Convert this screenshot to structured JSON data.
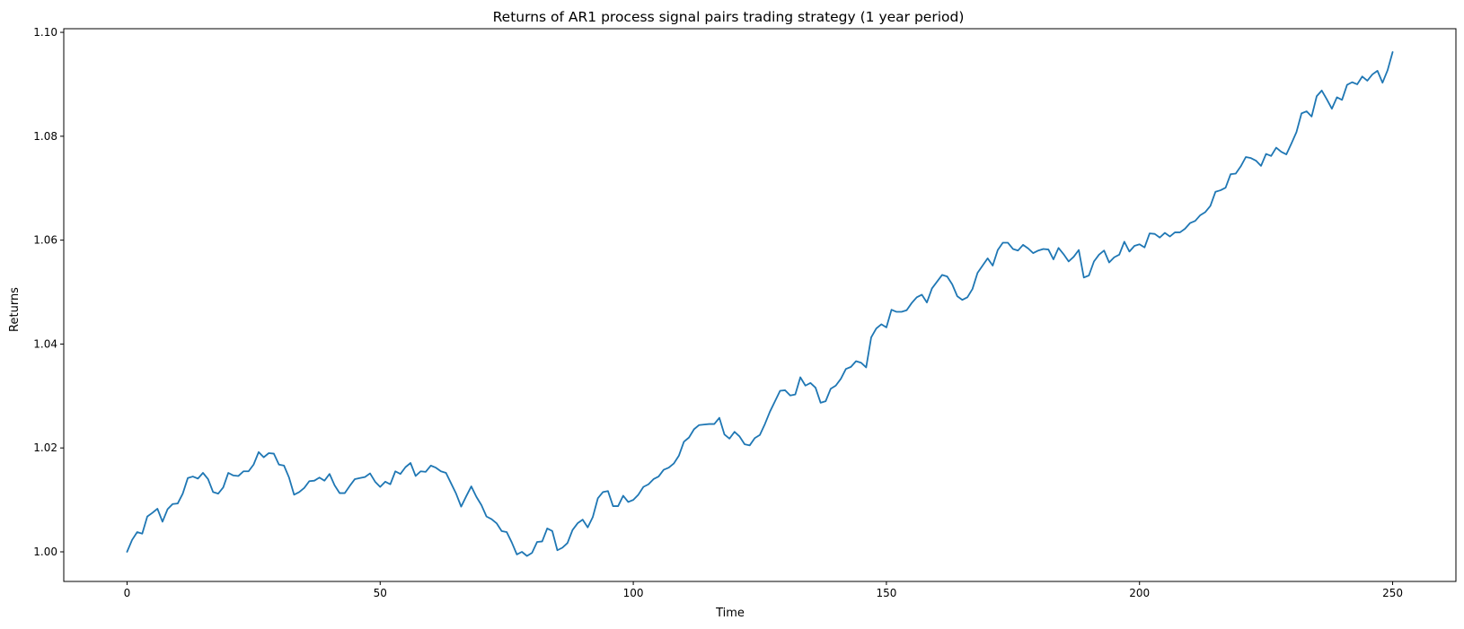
{
  "chart_data": {
    "type": "line",
    "title": "Returns of AR1 process signal pairs trading strategy (1 year period)",
    "xlabel": "Time",
    "ylabel": "Returns",
    "xlim": [
      -12.5,
      262.5
    ],
    "ylim": [
      0.9943,
      1.1007
    ],
    "xticks": [
      0,
      50,
      100,
      150,
      200,
      250
    ],
    "xtick_labels": [
      "0",
      "50",
      "100",
      "150",
      "200",
      "250"
    ],
    "yticks": [
      1.0,
      1.02,
      1.04,
      1.06,
      1.08,
      1.1
    ],
    "ytick_labels": [
      "1.00",
      "1.02",
      "1.04",
      "1.06",
      "1.08",
      "1.10"
    ],
    "grid": false,
    "legend": "none",
    "series": [
      {
        "color": "#1f77b4",
        "x": [
          0,
          1,
          2,
          3,
          4,
          5,
          6,
          7,
          8,
          9,
          10,
          11,
          12,
          13,
          14,
          15,
          16,
          17,
          18,
          19,
          20,
          21,
          22,
          23,
          24,
          25,
          26,
          27,
          28,
          29,
          30,
          31,
          32,
          33,
          34,
          35,
          36,
          37,
          38,
          39,
          40,
          41,
          42,
          43,
          44,
          45,
          46,
          47,
          48,
          49,
          50,
          51,
          52,
          53,
          54,
          55,
          56,
          57,
          58,
          59,
          60,
          61,
          62,
          63,
          64,
          65,
          66,
          67,
          68,
          69,
          70,
          71,
          72,
          73,
          74,
          75,
          76,
          77,
          78,
          79,
          80,
          81,
          82,
          83,
          84,
          85,
          86,
          87,
          88,
          89,
          90,
          91,
          92,
          93,
          94,
          95,
          96,
          97,
          98,
          99,
          100,
          101,
          102,
          103,
          104,
          105,
          106,
          107,
          108,
          109,
          110,
          111,
          112,
          113,
          114,
          115,
          116,
          117,
          118,
          119,
          120,
          121,
          122,
          123,
          124,
          125,
          126,
          127,
          128,
          129,
          130,
          131,
          132,
          133,
          134,
          135,
          136,
          137,
          138,
          139,
          140,
          141,
          142,
          143,
          144,
          145,
          146,
          147,
          148,
          149,
          150,
          151,
          152,
          153,
          154,
          155,
          156,
          157,
          158,
          159,
          160,
          161,
          162,
          163,
          164,
          165,
          166,
          167,
          168,
          169,
          170,
          171,
          172,
          173,
          174,
          175,
          176,
          177,
          178,
          179,
          180,
          181,
          182,
          183,
          184,
          185,
          186,
          187,
          188,
          189,
          190,
          191,
          192,
          193,
          194,
          195,
          196,
          197,
          198,
          199,
          200,
          201,
          202,
          203,
          204,
          205,
          206,
          207,
          208,
          209,
          210,
          211,
          212,
          213,
          214,
          215,
          216,
          217,
          218,
          219,
          220,
          221,
          222,
          223,
          224,
          225,
          226,
          227,
          228,
          229,
          230,
          231,
          232,
          233,
          234,
          235,
          236,
          237,
          238,
          239,
          240,
          241,
          242,
          243,
          244,
          245,
          246,
          247,
          248,
          249,
          250
        ],
        "y": [
          1.0,
          1.0023,
          1.0038,
          1.0035,
          1.0068,
          1.0075,
          1.0083,
          1.0058,
          1.0082,
          1.0092,
          1.0093,
          1.0112,
          1.0142,
          1.0145,
          1.0141,
          1.0152,
          1.014,
          1.0115,
          1.0112,
          1.0124,
          1.0152,
          1.0147,
          1.0146,
          1.0155,
          1.0155,
          1.0168,
          1.0192,
          1.0182,
          1.019,
          1.0189,
          1.0168,
          1.0166,
          1.0143,
          1.011,
          1.0115,
          1.0123,
          1.0136,
          1.0137,
          1.0143,
          1.0137,
          1.015,
          1.0128,
          1.0113,
          1.0113,
          1.0127,
          1.014,
          1.0142,
          1.0144,
          1.0151,
          1.0135,
          1.0125,
          1.0135,
          1.013,
          1.0155,
          1.015,
          1.0163,
          1.0171,
          1.0146,
          1.0155,
          1.0154,
          1.0166,
          1.0162,
          1.0155,
          1.0152,
          1.0132,
          1.0112,
          1.0087,
          1.0107,
          1.0126,
          1.0106,
          1.009,
          1.0068,
          1.0063,
          1.0055,
          1.004,
          1.0038,
          1.0018,
          0.9995,
          1.0,
          0.9992,
          0.9998,
          1.0019,
          1.002,
          1.0045,
          1.004,
          1.0003,
          1.0008,
          1.0017,
          1.0042,
          1.0055,
          1.0062,
          1.0047,
          1.0067,
          1.0103,
          1.0115,
          1.0117,
          1.0088,
          1.0088,
          1.0108,
          1.0096,
          1.01,
          1.011,
          1.0125,
          1.013,
          1.014,
          1.0145,
          1.0158,
          1.0162,
          1.017,
          1.0185,
          1.0212,
          1.022,
          1.0236,
          1.0244,
          1.0245,
          1.0246,
          1.0246,
          1.0258,
          1.0226,
          1.0218,
          1.0231,
          1.0222,
          1.0207,
          1.0205,
          1.0219,
          1.0225,
          1.0246,
          1.027,
          1.029,
          1.031,
          1.0311,
          1.0301,
          1.0303,
          1.0336,
          1.032,
          1.0325,
          1.0316,
          1.0287,
          1.029,
          1.0314,
          1.032,
          1.0333,
          1.0352,
          1.0356,
          1.0367,
          1.0364,
          1.0355,
          1.0413,
          1.043,
          1.0438,
          1.0432,
          1.0466,
          1.0462,
          1.0462,
          1.0465,
          1.0479,
          1.049,
          1.0495,
          1.048,
          1.0507,
          1.052,
          1.0533,
          1.053,
          1.0515,
          1.0492,
          1.0485,
          1.049,
          1.0506,
          1.0537,
          1.0551,
          1.0565,
          1.0551,
          1.0581,
          1.0595,
          1.0595,
          1.0583,
          1.058,
          1.0591,
          1.0584,
          1.0575,
          1.058,
          1.0583,
          1.0582,
          1.0563,
          1.0585,
          1.0573,
          1.0559,
          1.0568,
          1.0581,
          1.0528,
          1.0532,
          1.0559,
          1.0572,
          1.058,
          1.0557,
          1.0567,
          1.0572,
          1.0597,
          1.0578,
          1.0589,
          1.0592,
          1.0586,
          1.0613,
          1.0612,
          1.0605,
          1.0614,
          1.0607,
          1.0615,
          1.0615,
          1.0622,
          1.0633,
          1.0637,
          1.0648,
          1.0654,
          1.0666,
          1.0693,
          1.0696,
          1.0701,
          1.0727,
          1.0728,
          1.0742,
          1.076,
          1.0758,
          1.0753,
          1.0743,
          1.0766,
          1.0762,
          1.0778,
          1.077,
          1.0765,
          1.0786,
          1.0808,
          1.0844,
          1.0848,
          1.0838,
          1.0877,
          1.0888,
          1.0871,
          1.0853,
          1.0875,
          1.087,
          1.0899,
          1.0904,
          1.09,
          1.0915,
          1.0907,
          1.0919,
          1.0926,
          1.0903,
          1.0927,
          1.0962
        ]
      }
    ]
  }
}
